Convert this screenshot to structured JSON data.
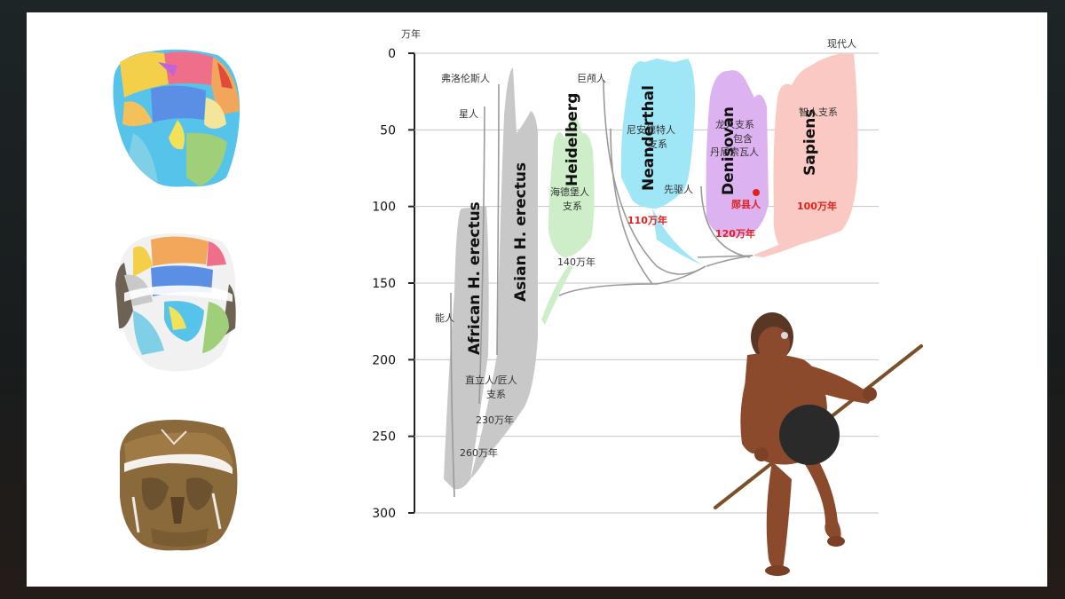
{
  "axis": {
    "unit": "万年",
    "ticks": [
      "0",
      "50",
      "100",
      "150",
      "200",
      "250",
      "300"
    ]
  },
  "clades": {
    "african": "African H. erectus",
    "asian": "Asian H. erectus",
    "heidelberg": "Heidelberg",
    "neanderthal": "Neanderthal",
    "denisovan": "Denisovan",
    "sapiens": "Sapiens"
  },
  "labels": {
    "floresiensis": "弗洛伦斯人",
    "naledi": "星人",
    "habilis": "能人",
    "erectus_branch": "直立人/匠人",
    "branch_word": "支系",
    "age_230": "230万年",
    "age_260": "260万年",
    "heidelberg_branch": "海德堡人",
    "age_140": "140万年",
    "longi": "巨颅人",
    "neanderthal_branch": "尼安德特人",
    "age_110": "110万年",
    "antecessor": "先驱人",
    "dragon_line1": "龙人支系",
    "dragon_line2": "包含",
    "dragon_line3": "丹尼索瓦人",
    "yunxian": "郧县人",
    "age_120": "120万年",
    "modern": "现代人",
    "sapiens_branch": "智人支系",
    "age_100": "100万年"
  },
  "colors": {
    "erectus": "#c8c8c8",
    "heidelberg": "#cdeec8",
    "neanderthal": "#9fe6f6",
    "denisovan": "#dcb2f0",
    "sapiens": "#fbc9c4",
    "highlight": "#e0221f"
  },
  "icons": [
    "skull-reconstruction-colored-icon",
    "skull-reconstruction-partial-icon",
    "skull-fossil-icon",
    "hominin-figure-with-spear-icon"
  ]
}
